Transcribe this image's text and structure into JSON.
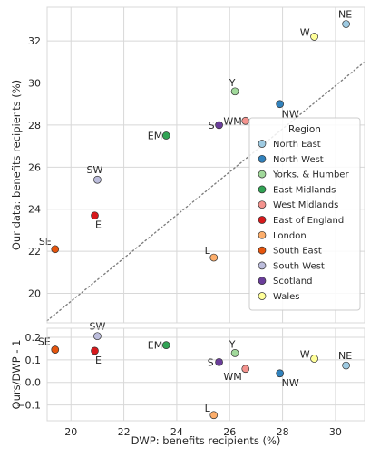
{
  "chart_data": [
    {
      "type": "scatter",
      "panel": "top",
      "xlabel": "",
      "ylabel": "Our data: benefits recipients (%)",
      "xlim": [
        19.1,
        31.1
      ],
      "ylim": [
        18.6,
        33.6
      ],
      "xticks": [
        20,
        22,
        24,
        26,
        28,
        30
      ],
      "yticks": [
        20,
        22,
        24,
        26,
        28,
        30,
        32
      ],
      "grid": true,
      "reference_line": {
        "style": "dotted",
        "color": "#7f7f7f",
        "points": [
          [
            19.1,
            18.7
          ],
          [
            31.1,
            31.0
          ]
        ]
      },
      "legend": {
        "title": "Region",
        "placement": "right",
        "entries": [
          {
            "name": "North East",
            "color": "#9ecae1"
          },
          {
            "name": "North West",
            "color": "#3182bd"
          },
          {
            "name": "Yorks. & Humber",
            "color": "#a1d99b"
          },
          {
            "name": "East Midlands",
            "color": "#31a354"
          },
          {
            "name": "West Midlands",
            "color": "#f4938e"
          },
          {
            "name": "East of England",
            "color": "#d7191c"
          },
          {
            "name": "London",
            "color": "#fdae6b"
          },
          {
            "name": "South East",
            "color": "#e6550d"
          },
          {
            "name": "South West",
            "color": "#bcbddc"
          },
          {
            "name": "Scotland",
            "color": "#6a3d9a"
          },
          {
            "name": "Wales",
            "color": "#ffff99"
          }
        ]
      },
      "points": [
        {
          "label": "NE",
          "region": "North East",
          "x": 30.4,
          "y": 32.8,
          "color": "#9ecae1"
        },
        {
          "label": "NW",
          "region": "North West",
          "x": 27.9,
          "y": 29.0,
          "color": "#3182bd"
        },
        {
          "label": "Y",
          "region": "Yorks. & Humber",
          "x": 26.2,
          "y": 29.6,
          "color": "#a1d99b"
        },
        {
          "label": "EM",
          "region": "East Midlands",
          "x": 23.6,
          "y": 27.5,
          "color": "#31a354"
        },
        {
          "label": "WM",
          "region": "West Midlands",
          "x": 26.6,
          "y": 28.2,
          "color": "#f4938e"
        },
        {
          "label": "E",
          "region": "East of England",
          "x": 20.9,
          "y": 23.7,
          "color": "#d7191c"
        },
        {
          "label": "L",
          "region": "London",
          "x": 25.4,
          "y": 21.7,
          "color": "#fdae6b"
        },
        {
          "label": "SE",
          "region": "South East",
          "x": 19.4,
          "y": 22.1,
          "color": "#e6550d"
        },
        {
          "label": "SW",
          "region": "South West",
          "x": 21.0,
          "y": 25.4,
          "color": "#bcbddc"
        },
        {
          "label": "S",
          "region": "Scotland",
          "x": 25.6,
          "y": 28.0,
          "color": "#6a3d9a"
        },
        {
          "label": "W",
          "region": "Wales",
          "x": 29.2,
          "y": 32.2,
          "color": "#ffff99"
        }
      ]
    },
    {
      "type": "scatter",
      "panel": "bottom",
      "xlabel": "DWP: benefits recipients (%)",
      "ylabel": "Ours/DWP - 1",
      "xlim": [
        19.1,
        31.1
      ],
      "ylim": [
        -0.17,
        0.24
      ],
      "xticks": [
        20,
        22,
        24,
        26,
        28,
        30
      ],
      "yticks": [
        -0.1,
        0.0,
        0.1,
        0.2
      ],
      "grid": true,
      "points": [
        {
          "label": "NE",
          "region": "North East",
          "x": 30.4,
          "y": 0.075,
          "color": "#9ecae1"
        },
        {
          "label": "NW",
          "region": "North West",
          "x": 27.9,
          "y": 0.04,
          "color": "#3182bd"
        },
        {
          "label": "Y",
          "region": "Yorks. & Humber",
          "x": 26.2,
          "y": 0.13,
          "color": "#a1d99b"
        },
        {
          "label": "EM",
          "region": "East Midlands",
          "x": 23.6,
          "y": 0.165,
          "color": "#31a354"
        },
        {
          "label": "WM",
          "region": "West Midlands",
          "x": 26.6,
          "y": 0.06,
          "color": "#f4938e"
        },
        {
          "label": "E",
          "region": "East of England",
          "x": 20.9,
          "y": 0.14,
          "color": "#d7191c"
        },
        {
          "label": "L",
          "region": "London",
          "x": 25.4,
          "y": -0.145,
          "color": "#fdae6b"
        },
        {
          "label": "SE",
          "region": "South East",
          "x": 19.4,
          "y": 0.145,
          "color": "#e6550d"
        },
        {
          "label": "SW",
          "region": "South West",
          "x": 21.0,
          "y": 0.205,
          "color": "#bcbddc"
        },
        {
          "label": "S",
          "region": "Scotland",
          "x": 25.6,
          "y": 0.09,
          "color": "#6a3d9a"
        },
        {
          "label": "W",
          "region": "Wales",
          "x": 29.2,
          "y": 0.105,
          "color": "#ffff99"
        }
      ]
    }
  ]
}
